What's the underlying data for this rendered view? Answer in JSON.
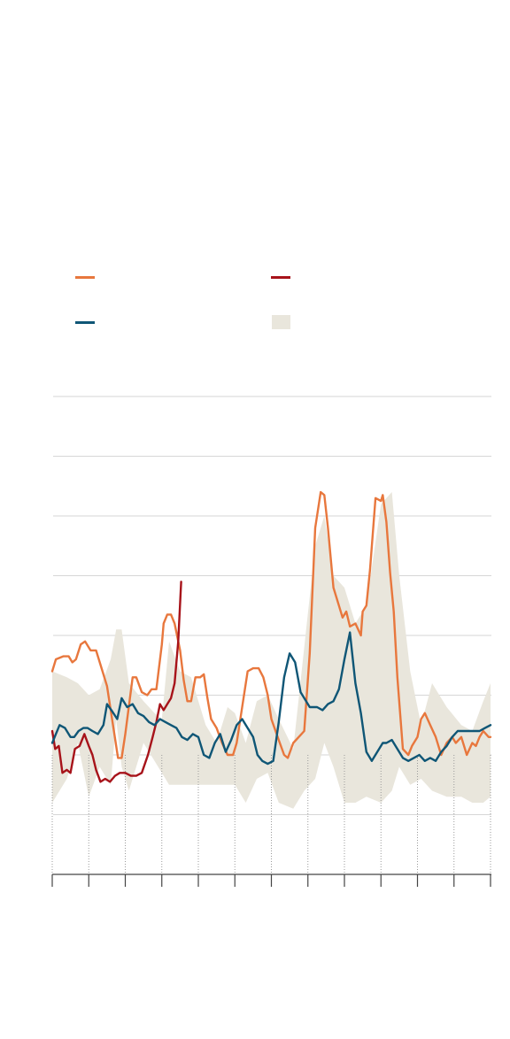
{
  "colors": {
    "background": "#ffffff",
    "grid": "#d6d6d6",
    "axis": "#444444",
    "vertical_gridline": "#9a9a9a",
    "orange": "#e8773d",
    "red": "#a7131a",
    "blue": "#0f5676",
    "band": "#e9e6dc"
  },
  "legend": [
    {
      "key": "orange",
      "kind": "line",
      "label": ""
    },
    {
      "key": "red",
      "kind": "line",
      "label": ""
    },
    {
      "key": "blue",
      "kind": "line",
      "label": ""
    },
    {
      "key": "band",
      "kind": "band",
      "label": ""
    }
  ],
  "chart_data": {
    "type": "line",
    "title": "",
    "xlabel": "",
    "ylabel": "",
    "xlim": [
      0,
      12
    ],
    "ylim": [
      0,
      8
    ],
    "x_ticks": [
      0,
      1,
      2,
      3,
      4,
      5,
      6,
      7,
      8,
      9,
      10,
      11,
      12
    ],
    "y_gridlines": [
      1,
      2,
      3,
      4,
      5,
      6,
      7,
      8
    ],
    "grid": true,
    "legend_placement": "top",
    "band": {
      "key": "band",
      "x": [
        0,
        0.4,
        0.7,
        1.0,
        1.3,
        1.6,
        1.75,
        1.9,
        2.1,
        2.5,
        2.8,
        3.0,
        3.2,
        3.5,
        3.8,
        4.2,
        4.5,
        4.8,
        5.0,
        5.3,
        5.6,
        5.9,
        6.2,
        6.6,
        6.9,
        7.2,
        7.45,
        7.7,
        8.0,
        8.3,
        8.6,
        9.0,
        9.3,
        9.5,
        9.8,
        10.1,
        10.4,
        10.8,
        11.2,
        11.5,
        11.8,
        12
      ],
      "upper": [
        3.4,
        3.3,
        3.2,
        3.0,
        3.1,
        3.6,
        4.1,
        4.1,
        3.2,
        2.9,
        2.7,
        2.6,
        3.9,
        3.4,
        3.3,
        2.5,
        2.2,
        2.8,
        2.7,
        2.2,
        2.9,
        3.0,
        2.6,
        2.1,
        3.8,
        5.5,
        6.0,
        5.0,
        4.8,
        4.2,
        4.5,
        6.2,
        6.4,
        5.0,
        3.4,
        2.5,
        3.2,
        2.8,
        2.5,
        2.4,
        2.9,
        3.2
      ],
      "lower": [
        1.2,
        1.6,
        2.2,
        1.3,
        1.8,
        1.5,
        2.6,
        1.8,
        1.4,
        2.2,
        1.9,
        1.7,
        1.5,
        1.5,
        1.5,
        1.5,
        1.5,
        1.5,
        1.5,
        1.2,
        1.6,
        1.7,
        1.2,
        1.1,
        1.4,
        1.6,
        2.2,
        1.8,
        1.2,
        1.2,
        1.3,
        1.2,
        1.4,
        1.8,
        1.5,
        1.6,
        1.4,
        1.3,
        1.3,
        1.2,
        1.2,
        1.3
      ]
    },
    "series": [
      {
        "key": "orange",
        "x": [
          0,
          0.1,
          0.3,
          0.45,
          0.55,
          0.65,
          0.78,
          0.9,
          1.05,
          1.2,
          1.4,
          1.5,
          1.65,
          1.8,
          1.9,
          2.0,
          2.2,
          2.3,
          2.45,
          2.6,
          2.72,
          2.85,
          3.0,
          3.05,
          3.15,
          3.25,
          3.35,
          3.5,
          3.6,
          3.7,
          3.8,
          3.92,
          4.05,
          4.15,
          4.25,
          4.35,
          4.5,
          4.65,
          4.8,
          4.95,
          5.05,
          5.2,
          5.35,
          5.5,
          5.65,
          5.78,
          5.9,
          6.0,
          6.2,
          6.35,
          6.45,
          6.6,
          6.75,
          6.9,
          7.05,
          7.2,
          7.35,
          7.45,
          7.55,
          7.7,
          7.85,
          7.95,
          8.05,
          8.15,
          8.3,
          8.45,
          8.5,
          8.6,
          8.7,
          8.85,
          9.0,
          9.05,
          9.15,
          9.25,
          9.35,
          9.45,
          9.6,
          9.75,
          9.85,
          10.0,
          10.1,
          10.2,
          10.35,
          10.5,
          10.65,
          10.8,
          10.95,
          11.05,
          11.2,
          11.35,
          11.5,
          11.6,
          11.7,
          11.8,
          11.95,
          12
        ],
        "y": [
          3.4,
          3.6,
          3.65,
          3.65,
          3.55,
          3.6,
          3.85,
          3.9,
          3.75,
          3.75,
          3.35,
          3.15,
          2.55,
          1.95,
          1.95,
          2.35,
          3.3,
          3.3,
          3.05,
          3.0,
          3.1,
          3.1,
          3.85,
          4.2,
          4.35,
          4.35,
          4.2,
          3.75,
          3.25,
          2.9,
          2.9,
          3.3,
          3.3,
          3.35,
          2.95,
          2.6,
          2.45,
          2.2,
          2.0,
          2.0,
          2.2,
          2.8,
          3.4,
          3.45,
          3.45,
          3.3,
          3.0,
          2.6,
          2.25,
          2.0,
          1.95,
          2.2,
          2.3,
          2.4,
          3.7,
          5.8,
          6.4,
          6.35,
          5.8,
          4.8,
          4.5,
          4.3,
          4.4,
          4.15,
          4.2,
          4.0,
          4.4,
          4.5,
          5.1,
          6.3,
          6.25,
          6.35,
          5.9,
          5.05,
          4.4,
          3.3,
          2.1,
          2.0,
          2.15,
          2.3,
          2.6,
          2.7,
          2.5,
          2.3,
          2.0,
          2.2,
          2.3,
          2.2,
          2.3,
          2.0,
          2.2,
          2.15,
          2.3,
          2.4,
          2.3,
          2.3
        ]
      },
      {
        "key": "red",
        "x": [
          0,
          0.08,
          0.18,
          0.28,
          0.4,
          0.5,
          0.62,
          0.75,
          0.88,
          1.0,
          1.1,
          1.2,
          1.32,
          1.45,
          1.58,
          1.72,
          1.85,
          2.0,
          2.15,
          2.3,
          2.45,
          2.62,
          2.75,
          2.85,
          2.95,
          3.05,
          3.15,
          3.25,
          3.35,
          3.45,
          3.53
        ],
        "y": [
          2.4,
          2.1,
          2.15,
          1.7,
          1.75,
          1.7,
          2.1,
          2.15,
          2.35,
          2.15,
          2.0,
          1.75,
          1.55,
          1.6,
          1.55,
          1.65,
          1.7,
          1.7,
          1.65,
          1.65,
          1.7,
          2.0,
          2.3,
          2.55,
          2.85,
          2.75,
          2.85,
          2.95,
          3.2,
          3.9,
          4.9
        ]
      },
      {
        "key": "blue",
        "x": [
          0,
          0.1,
          0.2,
          0.35,
          0.5,
          0.6,
          0.72,
          0.85,
          0.97,
          1.1,
          1.25,
          1.4,
          1.5,
          1.62,
          1.78,
          1.9,
          2.05,
          2.2,
          2.35,
          2.5,
          2.65,
          2.8,
          2.95,
          3.1,
          3.25,
          3.4,
          3.55,
          3.7,
          3.85,
          4.0,
          4.15,
          4.3,
          4.45,
          4.6,
          4.75,
          4.9,
          5.05,
          5.2,
          5.35,
          5.5,
          5.62,
          5.75,
          5.9,
          6.05,
          6.2,
          6.35,
          6.5,
          6.65,
          6.8,
          6.95,
          7.05,
          7.15,
          7.25,
          7.4,
          7.55,
          7.7,
          7.85,
          8.0,
          8.15,
          8.3,
          8.45,
          8.6,
          8.75,
          8.9,
          9.05,
          9.15,
          9.3,
          9.45,
          9.6,
          9.75,
          9.9,
          10.05,
          10.2,
          10.35,
          10.5,
          10.65,
          10.8,
          10.95,
          11.1,
          11.25,
          11.4,
          11.55,
          11.7,
          11.85,
          12
        ],
        "y": [
          2.2,
          2.35,
          2.5,
          2.45,
          2.3,
          2.3,
          2.4,
          2.45,
          2.45,
          2.4,
          2.35,
          2.5,
          2.85,
          2.75,
          2.6,
          2.95,
          2.8,
          2.85,
          2.7,
          2.65,
          2.55,
          2.5,
          2.6,
          2.55,
          2.5,
          2.45,
          2.3,
          2.25,
          2.35,
          2.3,
          2.0,
          1.95,
          2.2,
          2.35,
          2.05,
          2.25,
          2.5,
          2.6,
          2.45,
          2.3,
          2.0,
          1.9,
          1.85,
          1.9,
          2.55,
          3.3,
          3.7,
          3.55,
          3.05,
          2.9,
          2.8,
          2.8,
          2.8,
          2.75,
          2.85,
          2.9,
          3.1,
          3.6,
          4.05,
          3.2,
          2.7,
          2.05,
          1.9,
          2.05,
          2.2,
          2.2,
          2.25,
          2.1,
          1.95,
          1.9,
          1.95,
          2.0,
          1.9,
          1.95,
          1.9,
          2.05,
          2.15,
          2.3,
          2.4,
          2.4,
          2.4,
          2.4,
          2.4,
          2.45,
          2.5
        ]
      }
    ]
  }
}
